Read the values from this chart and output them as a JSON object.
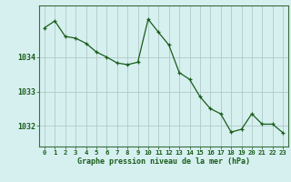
{
  "x": [
    0,
    1,
    2,
    3,
    4,
    5,
    6,
    7,
    8,
    9,
    10,
    11,
    12,
    13,
    14,
    15,
    16,
    17,
    18,
    19,
    20,
    21,
    22,
    23
  ],
  "y": [
    1034.85,
    1035.05,
    1034.6,
    1034.55,
    1034.4,
    1034.15,
    1034.0,
    1033.83,
    1033.78,
    1033.85,
    1035.1,
    1034.72,
    1034.35,
    1033.55,
    1033.35,
    1032.85,
    1032.5,
    1032.35,
    1031.82,
    1031.9,
    1032.35,
    1032.05,
    1032.05,
    1031.8
  ],
  "yticks": [
    1032,
    1033,
    1034
  ],
  "xticks": [
    0,
    1,
    2,
    3,
    4,
    5,
    6,
    7,
    8,
    9,
    10,
    11,
    12,
    13,
    14,
    15,
    16,
    17,
    18,
    19,
    20,
    21,
    22,
    23
  ],
  "xtick_labels": [
    "0",
    "1",
    "2",
    "3",
    "4",
    "5",
    "6",
    "7",
    "8",
    "9",
    "10",
    "11",
    "12",
    "13",
    "14",
    "15",
    "16",
    "17",
    "18",
    "19",
    "20",
    "21",
    "22",
    "23"
  ],
  "xlabel": "Graphe pression niveau de la mer (hPa)",
  "line_color": "#1a5c1a",
  "bg_color": "#d6f0f0",
  "grid_color": "#b0c8c8",
  "axis_color": "#3a6e3a",
  "ylim": [
    1031.4,
    1035.5
  ],
  "xlim": [
    -0.5,
    23.5
  ]
}
